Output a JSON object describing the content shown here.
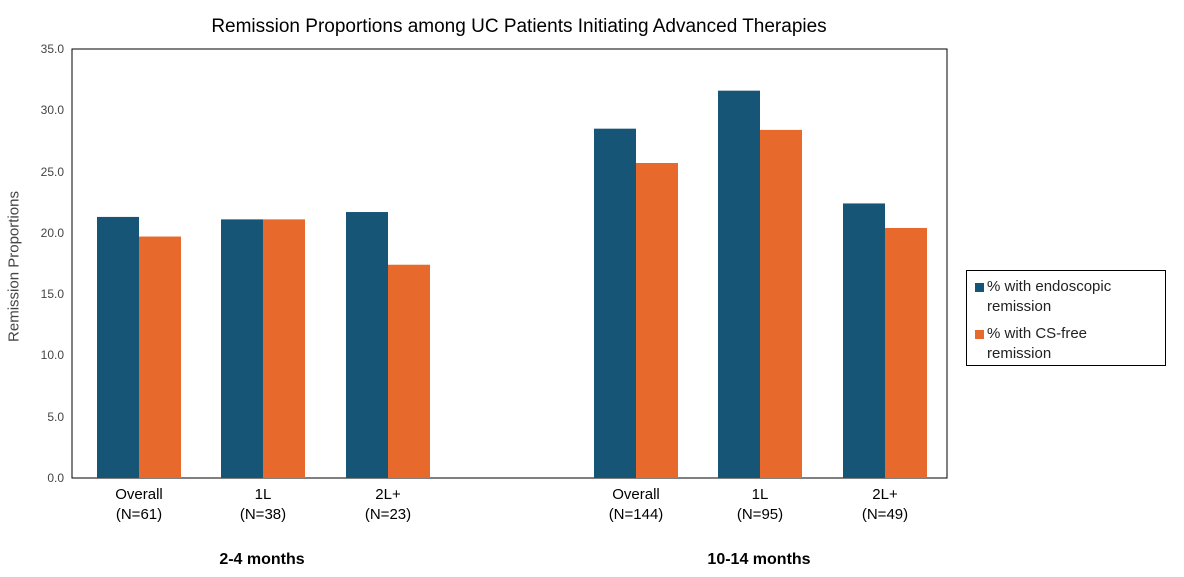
{
  "chart_data": {
    "type": "bar",
    "title": "Remission Proportions among UC Patients Initiating Advanced Therapies",
    "ylabel": "Remission Proportions",
    "xlabel": "",
    "ylim": [
      0,
      35
    ],
    "yticks": [
      "0.0",
      "5.0",
      "10.0",
      "15.0",
      "20.0",
      "25.0",
      "30.0",
      "35.0"
    ],
    "groups": [
      {
        "label": "2-4 months",
        "categories": [
          {
            "name": "Overall",
            "n": "(N=61)"
          },
          {
            "name": "1L",
            "n": "(N=38)"
          },
          {
            "name": "2L+",
            "n": "(N=23)"
          }
        ]
      },
      {
        "label": "10-14 months",
        "categories": [
          {
            "name": "Overall",
            "n": "(N=144)"
          },
          {
            "name": "1L",
            "n": "(N=95)"
          },
          {
            "name": "2L+",
            "n": "(N=49)"
          }
        ]
      }
    ],
    "series": [
      {
        "name": "% with endoscopic remission",
        "name_lines": [
          "% with endoscopic",
          "remission"
        ],
        "color": "#175577",
        "values": [
          21.3,
          21.1,
          21.7,
          28.5,
          31.6,
          22.4
        ]
      },
      {
        "name": "% with CS-free remission",
        "name_lines": [
          "% with CS-free",
          "remission"
        ],
        "color": "#E8692C",
        "values": [
          19.7,
          21.1,
          17.4,
          25.7,
          28.4,
          20.4
        ]
      }
    ],
    "grid": false,
    "legend": "right"
  }
}
